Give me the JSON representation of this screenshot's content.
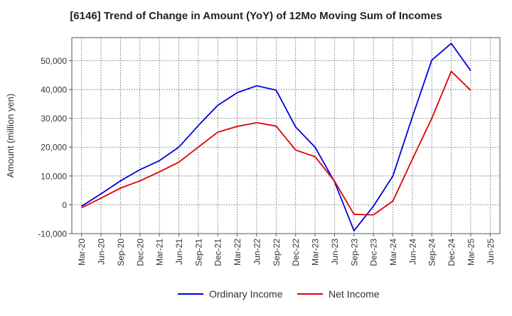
{
  "chart_data": {
    "type": "line",
    "title": "[6146]  Trend of Change in Amount (YoY) of 12Mo Moving Sum of Incomes",
    "xlabel": "",
    "ylabel": "Amount (million yen)",
    "ylim": [
      -10000,
      58000
    ],
    "yticks": [
      -10000,
      0,
      10000,
      20000,
      30000,
      40000,
      50000
    ],
    "ytick_labels": [
      "-10,000",
      "0",
      "10,000",
      "20,000",
      "30,000",
      "40,000",
      "50,000"
    ],
    "categories": [
      "Mar-20",
      "Jun-20",
      "Sep-20",
      "Dec-20",
      "Mar-21",
      "Jun-21",
      "Sep-21",
      "Dec-21",
      "Mar-22",
      "Jun-22",
      "Sep-22",
      "Dec-22",
      "Mar-23",
      "Jun-23",
      "Sep-23",
      "Dec-23",
      "Mar-24",
      "Jun-24",
      "Sep-24",
      "Dec-24",
      "Mar-25",
      "Jun-25"
    ],
    "grid": true,
    "legend": "bottom-center",
    "series": [
      {
        "name": "Ordinary Income",
        "color": "#0000dd",
        "values": [
          -500,
          3800,
          8300,
          12200,
          15300,
          20000,
          27500,
          34500,
          38900,
          41300,
          39800,
          27000,
          20000,
          8000,
          -9000,
          -500,
          10000,
          30500,
          50200,
          56000,
          46500,
          null
        ]
      },
      {
        "name": "Net Income",
        "color": "#dd0000",
        "values": [
          -1000,
          2300,
          5800,
          8300,
          11400,
          14800,
          20000,
          25200,
          27200,
          28500,
          27300,
          19000,
          16700,
          8200,
          -3300,
          -3500,
          1300,
          15800,
          30000,
          46300,
          39700,
          null
        ]
      }
    ]
  }
}
